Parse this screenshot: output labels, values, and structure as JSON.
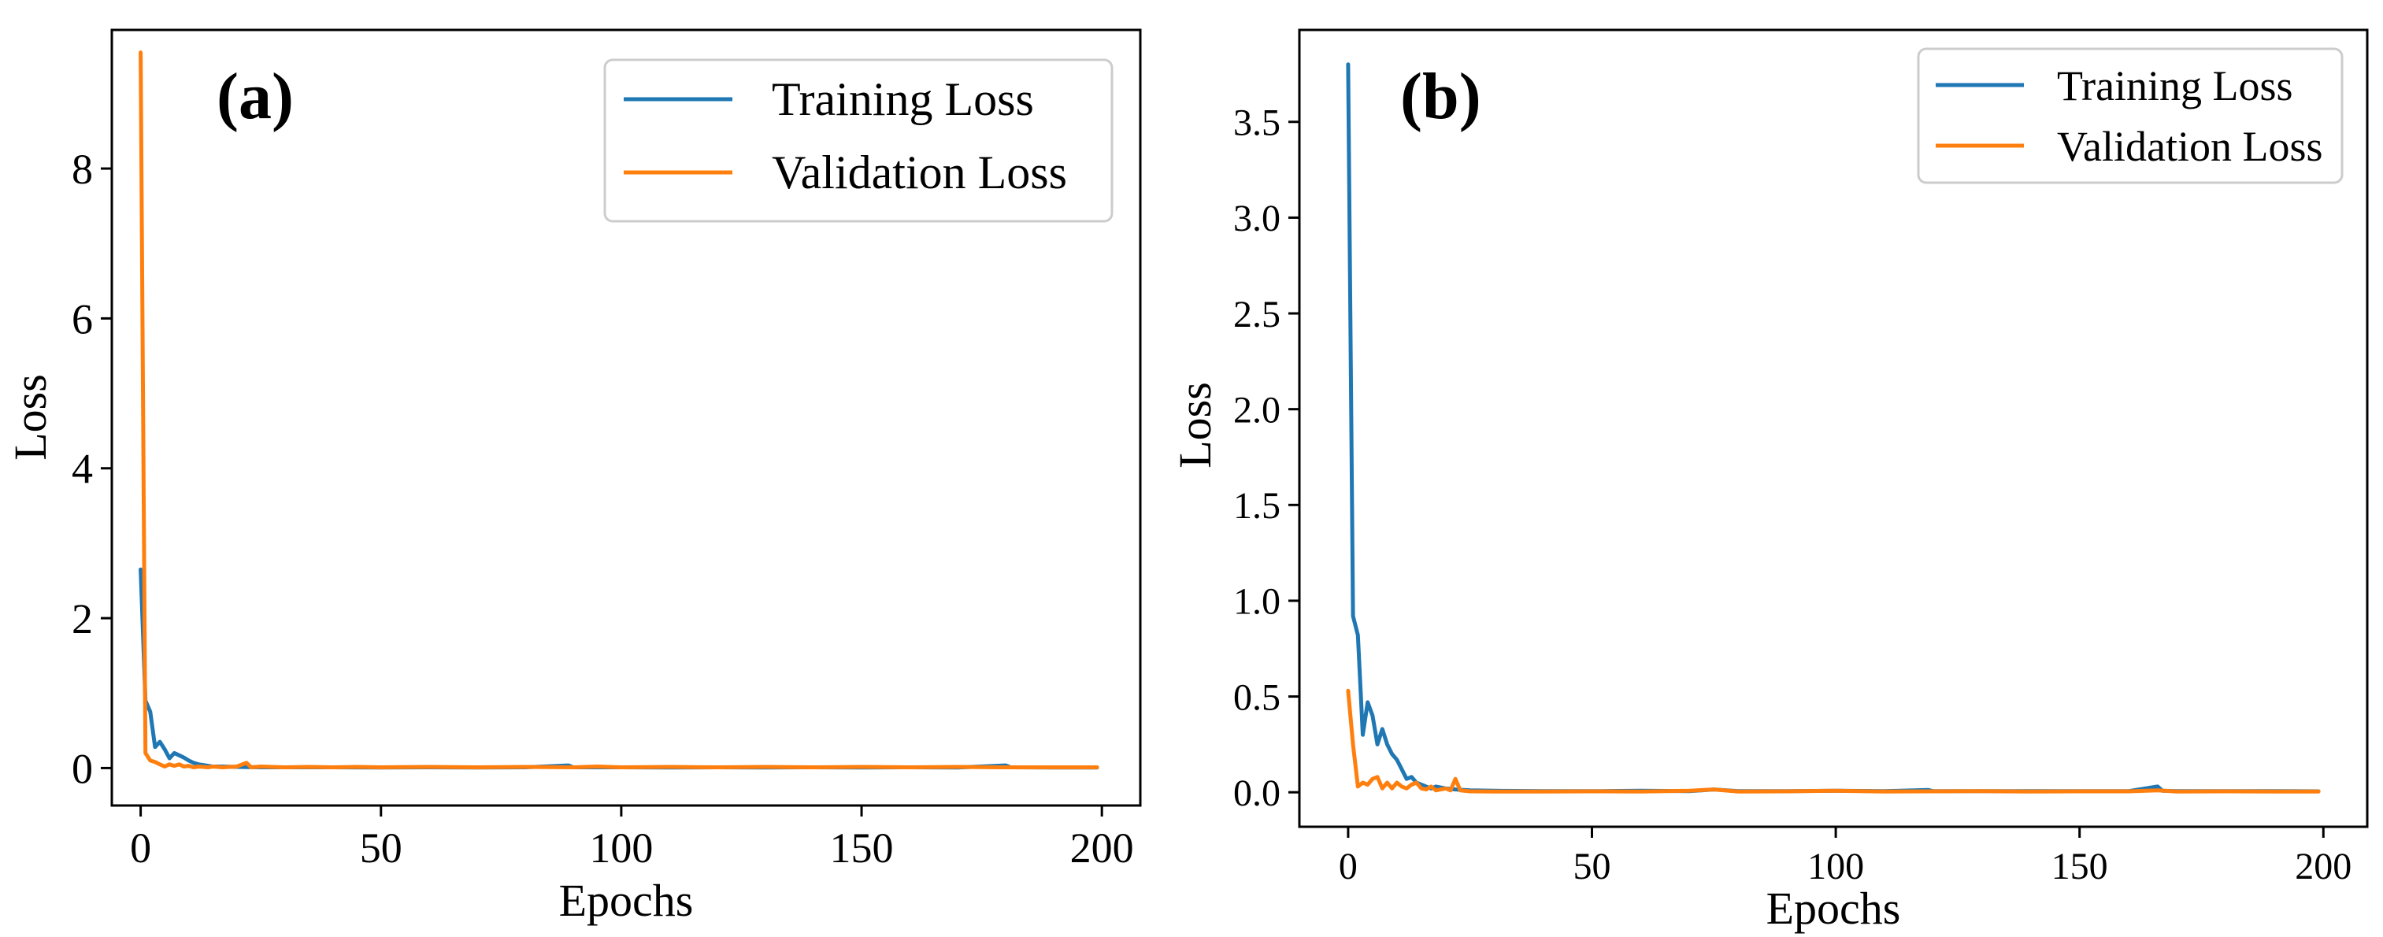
{
  "chart_data": [
    {
      "type": "line",
      "panel_label": "(a)",
      "xlabel": "Epochs",
      "ylabel": "Loss",
      "xlim": [
        -6,
        208
      ],
      "ylim": [
        -0.5,
        9.85
      ],
      "xticks": [
        0,
        50,
        100,
        150,
        200
      ],
      "yticks": [
        0,
        2,
        4,
        6,
        8
      ],
      "xtick_labels": [
        "0",
        "50",
        "100",
        "150",
        "200"
      ],
      "ytick_labels": [
        "0",
        "2",
        "4",
        "6",
        "8"
      ],
      "grid": false,
      "legend_position": "upper-right",
      "series": [
        {
          "name": "Training Loss",
          "color": "#1f77b4",
          "points": [
            [
              0,
              2.65
            ],
            [
              1,
              0.9
            ],
            [
              2,
              0.75
            ],
            [
              3,
              0.28
            ],
            [
              4,
              0.35
            ],
            [
              5,
              0.25
            ],
            [
              6,
              0.13
            ],
            [
              7,
              0.2
            ],
            [
              8,
              0.17
            ],
            [
              9,
              0.14
            ],
            [
              10,
              0.1
            ],
            [
              11,
              0.07
            ],
            [
              12,
              0.05
            ],
            [
              13,
              0.04
            ],
            [
              14,
              0.03
            ],
            [
              15,
              0.02
            ],
            [
              17,
              0.02
            ],
            [
              20,
              0.015
            ],
            [
              25,
              0.01
            ],
            [
              30,
              0.01
            ],
            [
              40,
              0.01
            ],
            [
              50,
              0.008
            ],
            [
              60,
              0.01
            ],
            [
              70,
              0.008
            ],
            [
              80,
              0.01
            ],
            [
              89,
              0.035
            ],
            [
              90,
              0.01
            ],
            [
              100,
              0.01
            ],
            [
              110,
              0.008
            ],
            [
              120,
              0.01
            ],
            [
              130,
              0.008
            ],
            [
              140,
              0.01
            ],
            [
              150,
              0.008
            ],
            [
              160,
              0.01
            ],
            [
              170,
              0.008
            ],
            [
              180,
              0.035
            ],
            [
              181,
              0.01
            ],
            [
              190,
              0.008
            ],
            [
              199,
              0.008
            ]
          ]
        },
        {
          "name": "Validation Loss",
          "color": "#ff7f0e",
          "points": [
            [
              0,
              9.55
            ],
            [
              1,
              0.2
            ],
            [
              2,
              0.1
            ],
            [
              3,
              0.08
            ],
            [
              4,
              0.05
            ],
            [
              5,
              0.02
            ],
            [
              6,
              0.05
            ],
            [
              7,
              0.03
            ],
            [
              8,
              0.05
            ],
            [
              9,
              0.02
            ],
            [
              10,
              0.03
            ],
            [
              11,
              0.01
            ],
            [
              12,
              0.02
            ],
            [
              14,
              0.01
            ],
            [
              15,
              0.02
            ],
            [
              17,
              0.01
            ],
            [
              20,
              0.02
            ],
            [
              22,
              0.07
            ],
            [
              23,
              0.01
            ],
            [
              25,
              0.02
            ],
            [
              30,
              0.01
            ],
            [
              35,
              0.015
            ],
            [
              40,
              0.01
            ],
            [
              45,
              0.015
            ],
            [
              50,
              0.01
            ],
            [
              60,
              0.015
            ],
            [
              70,
              0.01
            ],
            [
              80,
              0.015
            ],
            [
              90,
              0.01
            ],
            [
              95,
              0.02
            ],
            [
              100,
              0.01
            ],
            [
              110,
              0.015
            ],
            [
              120,
              0.01
            ],
            [
              130,
              0.015
            ],
            [
              140,
              0.01
            ],
            [
              150,
              0.015
            ],
            [
              160,
              0.01
            ],
            [
              170,
              0.015
            ],
            [
              180,
              0.01
            ],
            [
              190,
              0.01
            ],
            [
              199,
              0.01
            ]
          ]
        }
      ]
    },
    {
      "type": "line",
      "panel_label": "(b)",
      "xlabel": "Epochs",
      "ylabel": "Loss",
      "xlim": [
        -10,
        209
      ],
      "ylim": [
        -0.18,
        3.98
      ],
      "xticks": [
        0,
        50,
        100,
        150,
        200
      ],
      "yticks": [
        0.0,
        0.5,
        1.0,
        1.5,
        2.0,
        2.5,
        3.0,
        3.5
      ],
      "xtick_labels": [
        "0",
        "50",
        "100",
        "150",
        "200"
      ],
      "ytick_labels": [
        "0.0",
        "0.5",
        "1.0",
        "1.5",
        "2.0",
        "2.5",
        "3.0",
        "3.5"
      ],
      "grid": false,
      "legend_position": "upper-right",
      "series": [
        {
          "name": "Training Loss",
          "color": "#1f77b4",
          "points": [
            [
              0,
              3.8
            ],
            [
              1,
              0.92
            ],
            [
              2,
              0.82
            ],
            [
              3,
              0.3
            ],
            [
              4,
              0.47
            ],
            [
              5,
              0.4
            ],
            [
              6,
              0.25
            ],
            [
              7,
              0.33
            ],
            [
              8,
              0.25
            ],
            [
              9,
              0.2
            ],
            [
              10,
              0.17
            ],
            [
              11,
              0.12
            ],
            [
              12,
              0.07
            ],
            [
              13,
              0.08
            ],
            [
              14,
              0.05
            ],
            [
              15,
              0.04
            ],
            [
              16,
              0.03
            ],
            [
              17,
              0.02
            ],
            [
              18,
              0.03
            ],
            [
              20,
              0.02
            ],
            [
              22,
              0.015
            ],
            [
              25,
              0.01
            ],
            [
              30,
              0.008
            ],
            [
              40,
              0.006
            ],
            [
              50,
              0.006
            ],
            [
              60,
              0.008
            ],
            [
              70,
              0.006
            ],
            [
              75,
              0.015
            ],
            [
              80,
              0.006
            ],
            [
              90,
              0.006
            ],
            [
              100,
              0.008
            ],
            [
              110,
              0.006
            ],
            [
              119,
              0.012
            ],
            [
              120,
              0.006
            ],
            [
              130,
              0.006
            ],
            [
              140,
              0.006
            ],
            [
              150,
              0.006
            ],
            [
              160,
              0.006
            ],
            [
              166,
              0.03
            ],
            [
              167,
              0.008
            ],
            [
              170,
              0.006
            ],
            [
              180,
              0.006
            ],
            [
              190,
              0.006
            ],
            [
              199,
              0.005
            ]
          ]
        },
        {
          "name": "Validation Loss",
          "color": "#ff7f0e",
          "points": [
            [
              0,
              0.53
            ],
            [
              1,
              0.25
            ],
            [
              2,
              0.03
            ],
            [
              3,
              0.05
            ],
            [
              4,
              0.04
            ],
            [
              5,
              0.07
            ],
            [
              6,
              0.08
            ],
            [
              7,
              0.02
            ],
            [
              8,
              0.05
            ],
            [
              9,
              0.02
            ],
            [
              10,
              0.05
            ],
            [
              11,
              0.03
            ],
            [
              12,
              0.02
            ],
            [
              13,
              0.04
            ],
            [
              14,
              0.05
            ],
            [
              15,
              0.02
            ],
            [
              16,
              0.015
            ],
            [
              17,
              0.03
            ],
            [
              18,
              0.01
            ],
            [
              20,
              0.02
            ],
            [
              21,
              0.01
            ],
            [
              22,
              0.07
            ],
            [
              23,
              0.01
            ],
            [
              25,
              0.005
            ],
            [
              30,
              0.004
            ],
            [
              40,
              0.004
            ],
            [
              50,
              0.005
            ],
            [
              60,
              0.004
            ],
            [
              70,
              0.008
            ],
            [
              75,
              0.015
            ],
            [
              80,
              0.004
            ],
            [
              90,
              0.005
            ],
            [
              100,
              0.008
            ],
            [
              110,
              0.004
            ],
            [
              120,
              0.005
            ],
            [
              130,
              0.006
            ],
            [
              140,
              0.004
            ],
            [
              150,
              0.005
            ],
            [
              160,
              0.005
            ],
            [
              166,
              0.01
            ],
            [
              170,
              0.004
            ],
            [
              180,
              0.005
            ],
            [
              190,
              0.004
            ],
            [
              199,
              0.004
            ]
          ]
        }
      ]
    }
  ]
}
